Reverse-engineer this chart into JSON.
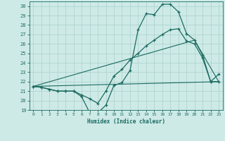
{
  "xlabel": "Humidex (Indice chaleur)",
  "bg_color": "#ceeae7",
  "grid_color": "#afd4d0",
  "line_color": "#1a6b60",
  "xlim": [
    -0.5,
    23.5
  ],
  "ylim": [
    19,
    30.5
  ],
  "yticks": [
    19,
    20,
    21,
    22,
    23,
    24,
    25,
    26,
    27,
    28,
    29,
    30
  ],
  "xticks": [
    0,
    1,
    2,
    3,
    4,
    5,
    6,
    7,
    8,
    9,
    10,
    11,
    12,
    13,
    14,
    15,
    16,
    17,
    18,
    19,
    20,
    21,
    22,
    23
  ],
  "line1_x": [
    0,
    1,
    2,
    3,
    4,
    5,
    6,
    7,
    8,
    9,
    10,
    11,
    12,
    13,
    14,
    15,
    16,
    17,
    18,
    19,
    20,
    21,
    22,
    23
  ],
  "line1_y": [
    21.5,
    21.4,
    21.2,
    21.0,
    21.0,
    21.0,
    20.4,
    18.7,
    18.7,
    19.5,
    21.6,
    21.9,
    23.2,
    27.5,
    29.2,
    29.1,
    30.2,
    30.2,
    29.4,
    27.1,
    26.4,
    24.8,
    22.0,
    22.8
  ],
  "line2_x": [
    0,
    1,
    2,
    3,
    4,
    5,
    6,
    7,
    8,
    9,
    10,
    11,
    12,
    13,
    14,
    15,
    16,
    17,
    18,
    19,
    20,
    21,
    22,
    23
  ],
  "line2_y": [
    21.5,
    21.4,
    21.2,
    21.0,
    21.0,
    21.0,
    20.6,
    20.2,
    19.7,
    21.0,
    22.6,
    23.3,
    24.3,
    25.0,
    25.8,
    26.4,
    27.0,
    27.5,
    27.6,
    26.3,
    26.0,
    24.5,
    22.0,
    22.0
  ],
  "line3_x": [
    0,
    23
  ],
  "line3_y": [
    21.5,
    22.0
  ],
  "line4_x": [
    0,
    20,
    23
  ],
  "line4_y": [
    21.5,
    26.4,
    22.0
  ]
}
